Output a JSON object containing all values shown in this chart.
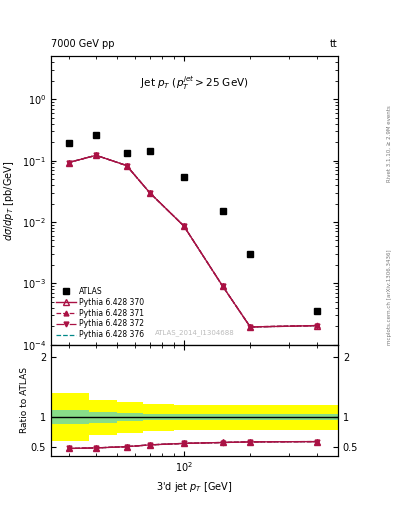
{
  "title_top_left": "7000 GeV pp",
  "title_top_right": "tt",
  "plot_title": "Jet $p_{T}$ ($p_{T}^{jet}>25$ GeV)",
  "ylabel_main": "$d\\sigma/dp_{T}$ [pb/GeV]",
  "ylabel_ratio": "Ratio to ATLAS",
  "xlabel": "3'd jet $p_{T}$ [GeV]",
  "right_label1": "Rivet 3.1.10, ≥ 2.9M events",
  "right_label2": "mcplots.cern.ch [arXiv:1306.3436]",
  "watermark": "ATLAS_2014_I1304688",
  "atlas_x": [
    30,
    40,
    55,
    70,
    100,
    150,
    200,
    400
  ],
  "atlas_y": [
    0.19,
    0.265,
    0.135,
    0.145,
    0.055,
    0.015,
    0.003,
    0.00035
  ],
  "py_x": [
    30,
    40,
    55,
    70,
    100,
    150,
    200,
    400
  ],
  "py370_y": [
    0.093,
    0.122,
    0.083,
    0.03,
    0.0086,
    0.0009,
    0.000195,
    0.000205
  ],
  "py371_y": [
    0.093,
    0.122,
    0.083,
    0.03,
    0.0086,
    0.0009,
    0.000196,
    0.000206
  ],
  "py372_y": [
    0.093,
    0.122,
    0.083,
    0.03,
    0.0086,
    0.0009,
    0.000194,
    0.000204
  ],
  "py376_y": [
    0.093,
    0.122,
    0.083,
    0.03,
    0.0086,
    0.0009,
    0.000195,
    0.000205
  ],
  "ratio_x": [
    30,
    40,
    55,
    70,
    100,
    150,
    200,
    400
  ],
  "ratio_370": [
    0.47,
    0.48,
    0.5,
    0.53,
    0.555,
    0.57,
    0.58,
    0.585
  ],
  "ratio_371": [
    0.47,
    0.48,
    0.5,
    0.53,
    0.555,
    0.571,
    0.581,
    0.586
  ],
  "ratio_372": [
    0.47,
    0.48,
    0.5,
    0.53,
    0.555,
    0.569,
    0.579,
    0.584
  ],
  "ratio_376": [
    0.47,
    0.48,
    0.5,
    0.53,
    0.555,
    0.57,
    0.58,
    0.585
  ],
  "color_370": "#aa1144",
  "color_371": "#aa1144",
  "color_372": "#aa1144",
  "color_376": "#008888",
  "band_x_edges": [
    25,
    37,
    50,
    65,
    90,
    130,
    200,
    500
  ],
  "yel_top": [
    1.4,
    1.28,
    1.25,
    1.22,
    1.2,
    1.2,
    1.2,
    1.2
  ],
  "yel_bot": [
    0.6,
    0.7,
    0.73,
    0.76,
    0.78,
    0.78,
    0.78,
    0.78
  ],
  "grn_top": [
    1.12,
    1.08,
    1.06,
    1.05,
    1.05,
    1.05,
    1.05,
    1.05
  ],
  "grn_bot": [
    0.88,
    0.9,
    0.93,
    0.94,
    0.94,
    0.94,
    0.94,
    0.94
  ],
  "xlim": [
    25,
    500
  ],
  "ylim_main": [
    0.0001,
    5.0
  ],
  "ylim_ratio": [
    0.35,
    2.2
  ]
}
